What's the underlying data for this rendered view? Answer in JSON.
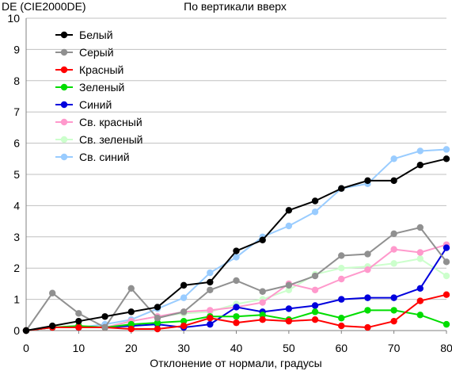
{
  "chart_data": {
    "type": "line",
    "title": "По вертикали вверх",
    "ylabel": "DE (CIE2000DE)",
    "xlabel": "Отклонение от нормали, градусы",
    "xlim": [
      0,
      80
    ],
    "ylim": [
      0,
      10
    ],
    "xticks": [
      0,
      10,
      20,
      30,
      40,
      50,
      60,
      70,
      80
    ],
    "yticks": [
      0,
      1,
      2,
      3,
      4,
      5,
      6,
      7,
      8,
      9,
      10
    ],
    "grid": true,
    "legend_position": "top-left",
    "x": [
      0,
      5,
      10,
      15,
      20,
      25,
      30,
      35,
      40,
      45,
      50,
      55,
      60,
      65,
      70,
      75,
      80
    ],
    "series": [
      {
        "name": "Белый",
        "color": "#000000",
        "values": [
          0,
          0.15,
          0.3,
          0.45,
          0.6,
          0.75,
          1.45,
          1.55,
          2.55,
          2.9,
          3.85,
          4.15,
          4.55,
          4.8,
          4.8,
          5.3,
          5.5
        ]
      },
      {
        "name": "Серый",
        "color": "#909090",
        "values": [
          0,
          1.2,
          0.55,
          0.1,
          1.35,
          0.4,
          0.6,
          1.3,
          1.6,
          1.25,
          1.45,
          1.75,
          2.4,
          2.45,
          3.1,
          3.3,
          2.2
        ]
      },
      {
        "name": "Красный",
        "color": "#ff0000",
        "values": [
          0,
          0.1,
          0.1,
          0.1,
          0.05,
          0.05,
          0.15,
          0.4,
          0.25,
          0.35,
          0.3,
          0.35,
          0.15,
          0.1,
          0.3,
          0.95,
          1.15
        ]
      },
      {
        "name": "Зеленый",
        "color": "#00dd00",
        "values": [
          0,
          0.1,
          0.15,
          0.1,
          0.2,
          0.25,
          0.3,
          0.45,
          0.45,
          0.5,
          0.35,
          0.6,
          0.4,
          0.65,
          0.65,
          0.5,
          0.2
        ]
      },
      {
        "name": "Синий",
        "color": "#0000dd",
        "values": [
          0,
          0.1,
          0.1,
          0.1,
          0.15,
          0.2,
          0.1,
          0.2,
          0.75,
          0.6,
          0.7,
          0.8,
          1.0,
          1.05,
          1.05,
          1.35,
          2.65
        ]
      },
      {
        "name": "Св. красный",
        "color": "#ff99cc",
        "values": [
          0,
          0.1,
          0.15,
          0.1,
          0.3,
          0.45,
          0.6,
          0.65,
          0.75,
          0.9,
          1.5,
          1.3,
          1.65,
          1.95,
          2.6,
          2.5,
          2.75
        ]
      },
      {
        "name": "Св. зеленый",
        "color": "#ccffcc",
        "values": [
          0,
          0.1,
          0.15,
          0.1,
          0.3,
          0.45,
          0.55,
          0.6,
          0.85,
          1.0,
          1.3,
          1.8,
          2.0,
          2.05,
          2.15,
          2.3,
          1.75
        ]
      },
      {
        "name": "Св. синий",
        "color": "#99ccff",
        "values": [
          0,
          0.1,
          0.1,
          0.2,
          0.35,
          0.7,
          1.05,
          1.85,
          2.35,
          3.0,
          3.35,
          3.8,
          4.55,
          4.7,
          5.5,
          5.75,
          5.8
        ]
      }
    ]
  }
}
